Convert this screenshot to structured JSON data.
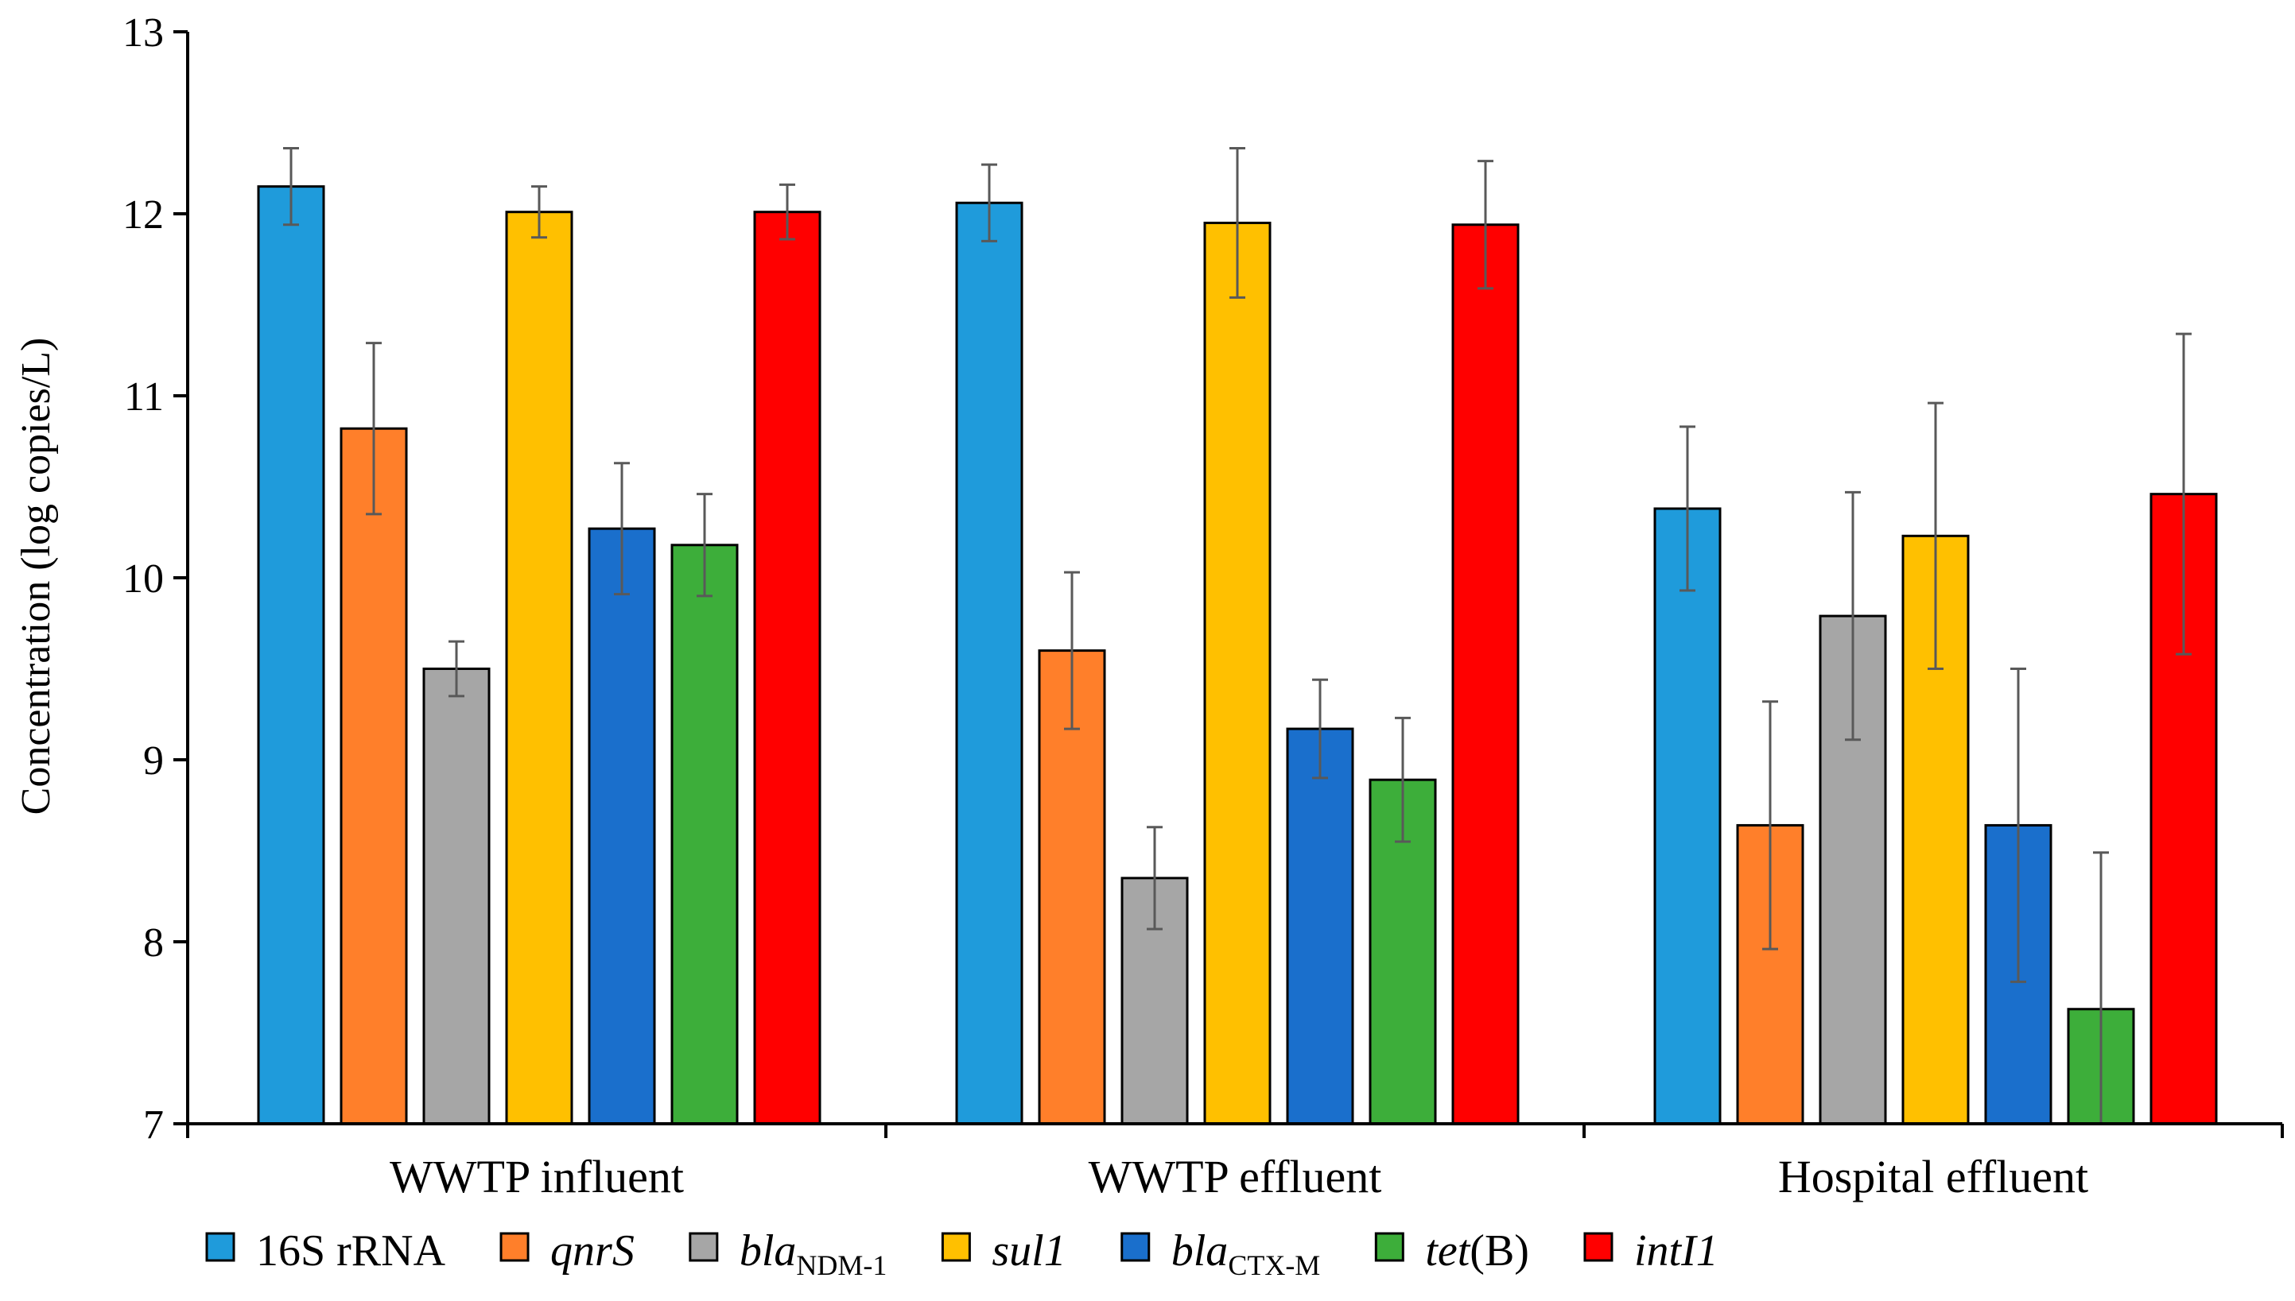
{
  "chart_data": {
    "type": "bar",
    "title": "",
    "xlabel": "",
    "ylabel": "Concentration (log copies/L)",
    "ylim": [
      7,
      13
    ],
    "yticks": [
      7,
      8,
      9,
      10,
      11,
      12,
      13
    ],
    "grid": false,
    "legend_position": "bottom",
    "categories": [
      "WWTP influent",
      "WWTP effluent",
      "Hospital effluent"
    ],
    "series": [
      {
        "name": "16S rRNA",
        "italic": false,
        "name_sub": "",
        "name_suffix": "",
        "color": "#1F9BDB",
        "values": [
          12.15,
          12.06,
          10.38
        ],
        "errors": [
          0.21,
          0.21,
          0.45
        ]
      },
      {
        "name": "qnrS",
        "italic": true,
        "name_sub": "",
        "name_suffix": "",
        "color": "#FF7F2A",
        "values": [
          10.82,
          9.6,
          8.64
        ],
        "errors": [
          0.47,
          0.43,
          0.68
        ]
      },
      {
        "name": "bla",
        "italic": true,
        "name_sub": "NDM-1",
        "name_suffix": "",
        "color": "#A6A6A6",
        "values": [
          9.5,
          8.35,
          9.79
        ],
        "errors": [
          0.15,
          0.28,
          0.68
        ]
      },
      {
        "name": "sul1",
        "italic": true,
        "name_sub": "",
        "name_suffix": "",
        "color": "#FFC000",
        "values": [
          12.01,
          11.95,
          10.23
        ],
        "errors": [
          0.14,
          0.41,
          0.73
        ]
      },
      {
        "name": "bla",
        "italic": true,
        "name_sub": "CTX-M",
        "name_suffix": "",
        "color": "#1A6FCC",
        "values": [
          10.27,
          9.17,
          8.64
        ],
        "errors": [
          0.36,
          0.27,
          0.86
        ]
      },
      {
        "name": "tet",
        "italic": true,
        "name_sub": "",
        "name_suffix": "(B)",
        "color": "#3DAE3A",
        "values": [
          10.18,
          8.89,
          7.63
        ],
        "errors": [
          0.28,
          0.34,
          0.86
        ]
      },
      {
        "name": "intI1",
        "italic": true,
        "name_sub": "",
        "name_suffix": "",
        "color": "#FF0000",
        "values": [
          12.01,
          11.94,
          10.46
        ],
        "errors": [
          0.15,
          0.35,
          0.88
        ]
      }
    ]
  }
}
